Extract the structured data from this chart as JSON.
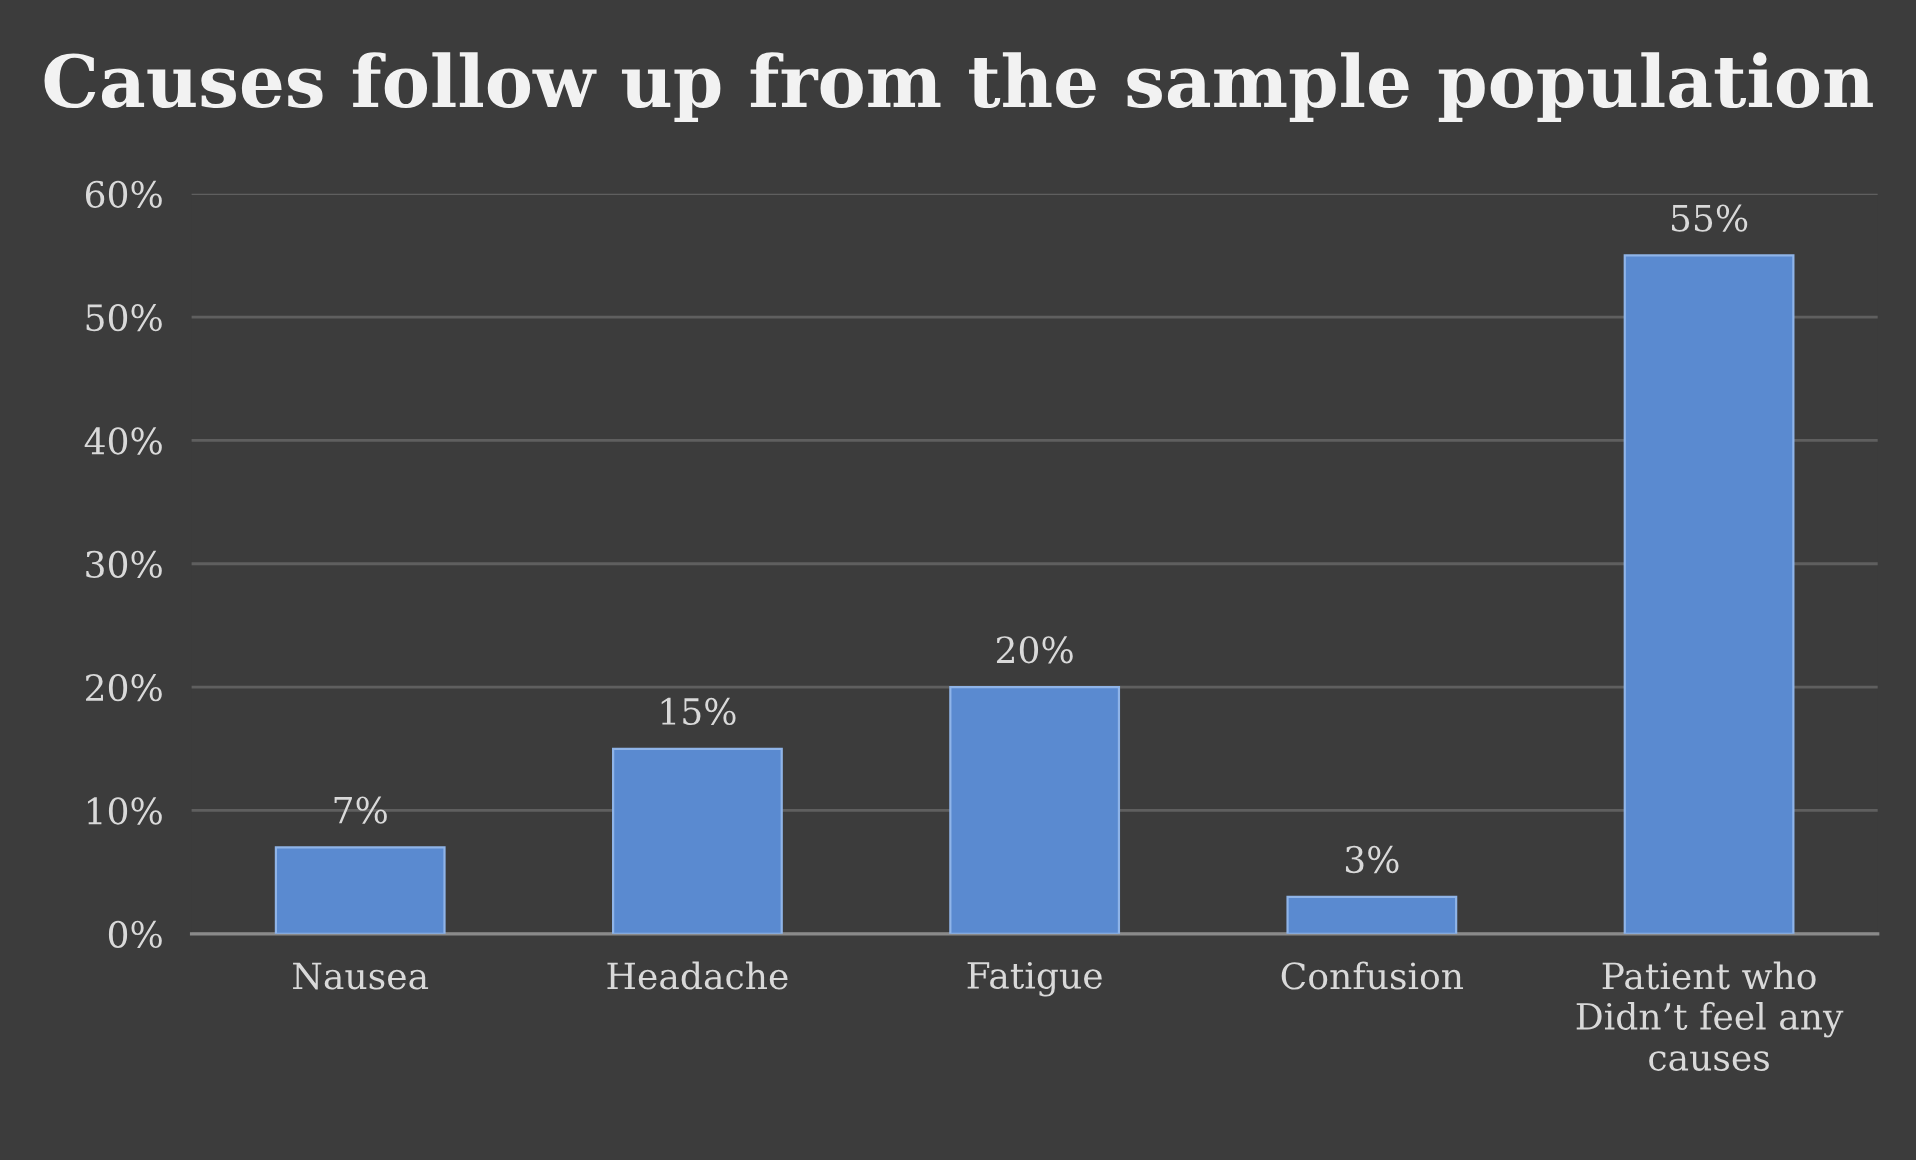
{
  "chart_data": {
    "type": "bar",
    "title": "Causes follow up from the sample population",
    "categories": [
      "Nausea",
      "Headache",
      "Fatigue",
      "Confusion",
      "Patient who\nDidn’t feel any\ncauses"
    ],
    "values": [
      7,
      15,
      20,
      3,
      55
    ],
    "value_labels": [
      "7%",
      "15%",
      "20%",
      "3%",
      "55%"
    ],
    "color": "#5a8ad0",
    "ylim": [
      0,
      60
    ],
    "yticks": [
      {
        "value": 0,
        "label": "0%"
      },
      {
        "value": 10,
        "label": "10%"
      },
      {
        "value": 20,
        "label": "20%"
      },
      {
        "value": 30,
        "label": "30%"
      },
      {
        "value": 40,
        "label": "40%"
      },
      {
        "value": 50,
        "label": "50%"
      },
      {
        "value": 60,
        "label": "60%"
      }
    ],
    "grid": "y"
  }
}
